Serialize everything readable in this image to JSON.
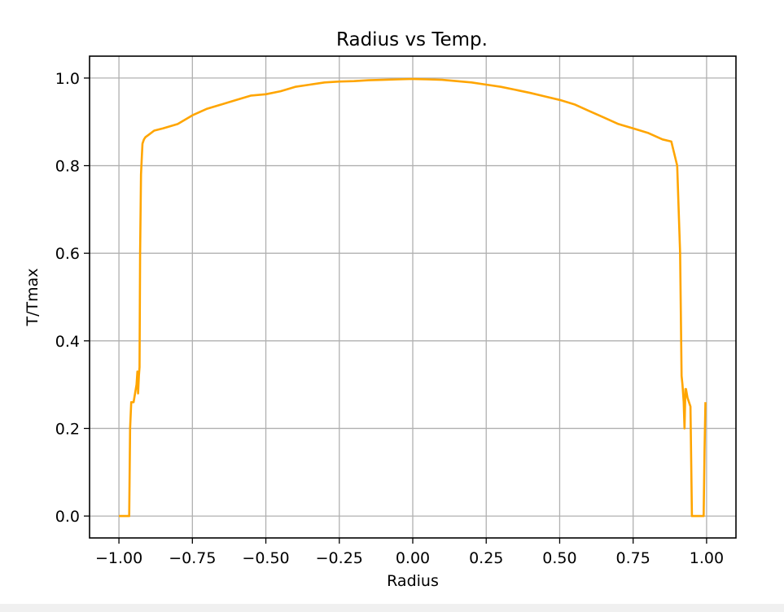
{
  "chart_data": {
    "type": "line",
    "title": "Radius vs Temp.",
    "xlabel": "Radius",
    "ylabel": "T/Tmax",
    "xlim": [
      -1.1,
      1.1
    ],
    "ylim": [
      -0.05,
      1.05
    ],
    "grid": true,
    "x_ticks": [
      -1.0,
      -0.75,
      -0.5,
      -0.25,
      0.0,
      0.25,
      0.5,
      0.75,
      1.0
    ],
    "x_tick_labels": [
      "−1.00",
      "−0.75",
      "−0.50",
      "−0.25",
      "0.00",
      "0.25",
      "0.50",
      "0.75",
      "1.00"
    ],
    "y_ticks": [
      0.0,
      0.2,
      0.4,
      0.6,
      0.8,
      1.0
    ],
    "y_tick_labels": [
      "0.0",
      "0.2",
      "0.4",
      "0.6",
      "0.8",
      "1.0"
    ],
    "series": [
      {
        "color": "#ffa500",
        "x": [
          -1.0,
          -0.965,
          -0.962,
          -0.958,
          -0.955,
          -0.95,
          -0.945,
          -0.94,
          -0.937,
          -0.935,
          -0.932,
          -0.93,
          -0.928,
          -0.925,
          -0.922,
          -0.92,
          -0.915,
          -0.91,
          -0.9,
          -0.88,
          -0.85,
          -0.8,
          -0.75,
          -0.7,
          -0.65,
          -0.6,
          -0.55,
          -0.5,
          -0.45,
          -0.4,
          -0.35,
          -0.3,
          -0.25,
          -0.2,
          -0.15,
          -0.1,
          -0.05,
          0.0,
          0.05,
          0.1,
          0.15,
          0.2,
          0.25,
          0.3,
          0.35,
          0.4,
          0.45,
          0.5,
          0.55,
          0.6,
          0.65,
          0.7,
          0.75,
          0.8,
          0.85,
          0.88,
          0.9,
          0.91,
          0.915,
          0.918,
          0.922,
          0.925,
          0.928,
          0.93,
          0.935,
          0.94,
          0.945,
          0.95,
          0.955,
          0.96,
          0.99,
          0.993,
          0.996
        ],
        "y": [
          0.0,
          0.0,
          0.2,
          0.26,
          0.26,
          0.26,
          0.28,
          0.3,
          0.33,
          0.28,
          0.32,
          0.34,
          0.6,
          0.78,
          0.82,
          0.85,
          0.86,
          0.865,
          0.87,
          0.88,
          0.885,
          0.895,
          0.915,
          0.93,
          0.94,
          0.95,
          0.96,
          0.963,
          0.97,
          0.98,
          0.985,
          0.99,
          0.992,
          0.993,
          0.995,
          0.996,
          0.997,
          0.998,
          0.997,
          0.996,
          0.993,
          0.99,
          0.985,
          0.98,
          0.973,
          0.966,
          0.958,
          0.95,
          0.94,
          0.925,
          0.91,
          0.895,
          0.885,
          0.875,
          0.86,
          0.855,
          0.8,
          0.6,
          0.32,
          0.3,
          0.26,
          0.2,
          0.29,
          0.29,
          0.27,
          0.26,
          0.25,
          0.0,
          0.0,
          0.0,
          0.0,
          0.15,
          0.26
        ]
      }
    ]
  }
}
